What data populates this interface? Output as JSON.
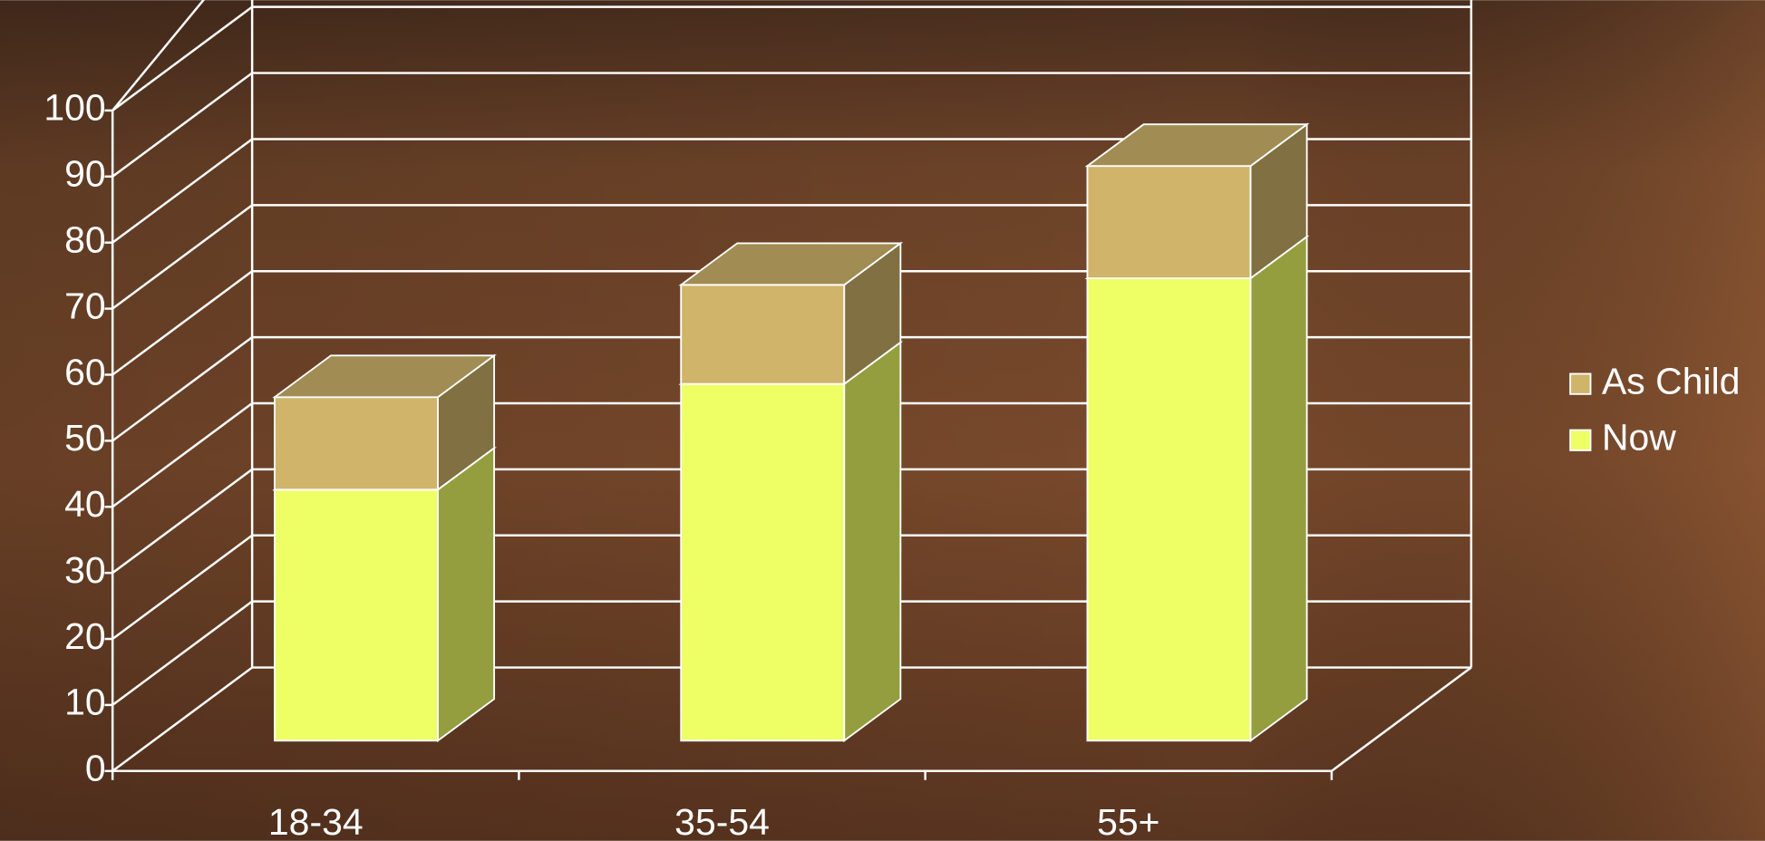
{
  "chart_data": {
    "type": "bar3d_stacked",
    "categories": [
      "18-34",
      "35-54",
      "55+"
    ],
    "series": [
      {
        "name": "As Child",
        "color": "#cfb46a",
        "values": [
          14,
          15,
          17
        ]
      },
      {
        "name": "Now",
        "color": "#eeff66",
        "values": [
          38,
          54,
          70
        ]
      }
    ],
    "ylim": [
      0,
      100
    ],
    "yticks": [
      0,
      10,
      20,
      30,
      40,
      50,
      60,
      70,
      80,
      90,
      100
    ],
    "grid": true,
    "legend": "right"
  }
}
